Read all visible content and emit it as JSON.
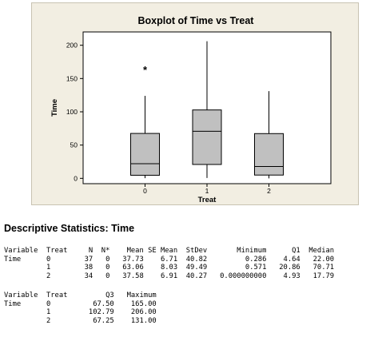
{
  "chart_data": {
    "type": "boxplot",
    "title": "Boxplot of Time vs Treat",
    "xlabel": "Treat",
    "ylabel": "Time",
    "categories": [
      "0",
      "1",
      "2"
    ],
    "ylim": [
      -8,
      220
    ],
    "yticks": [
      0,
      50,
      100,
      150,
      200
    ],
    "box_color": "#c0c0c0",
    "boxes": [
      {
        "label": "0",
        "q1": 4.64,
        "median": 22.0,
        "q3": 67.5,
        "whisker_low": 0.286,
        "whisker_high": 124,
        "outliers": [
          165
        ]
      },
      {
        "label": "1",
        "q1": 20.86,
        "median": 70.71,
        "q3": 102.79,
        "whisker_low": 0.571,
        "whisker_high": 206,
        "outliers": []
      },
      {
        "label": "2",
        "q1": 4.93,
        "median": 17.79,
        "q3": 67.25,
        "whisker_low": 0.0,
        "whisker_high": 131,
        "outliers": []
      }
    ],
    "outlier_symbol": "*"
  },
  "stats": {
    "title": "Descriptive Statistics: Time",
    "table1": {
      "header": [
        "Variable",
        "Treat",
        "N",
        "N*",
        "Mean",
        "SE Mean",
        "StDev",
        "Minimum",
        "Q1",
        "Median"
      ],
      "rows": [
        [
          "Time",
          "0",
          "37",
          "0",
          "37.73",
          "6.71",
          "40.82",
          "0.286",
          "4.64",
          "22.00"
        ],
        [
          "",
          "1",
          "38",
          "0",
          "63.06",
          "8.03",
          "49.49",
          "0.571",
          "20.86",
          "70.71"
        ],
        [
          "",
          "2",
          "34",
          "0",
          "37.58",
          "6.91",
          "40.27",
          "0.000000000",
          "4.93",
          "17.79"
        ]
      ]
    },
    "table2": {
      "header": [
        "Variable",
        "Treat",
        "Q3",
        "Maximum"
      ],
      "rows": [
        [
          "Time",
          "0",
          "67.50",
          "165.00"
        ],
        [
          "",
          "1",
          "102.79",
          "206.00"
        ],
        [
          "",
          "2",
          "67.25",
          "131.00"
        ]
      ]
    }
  }
}
